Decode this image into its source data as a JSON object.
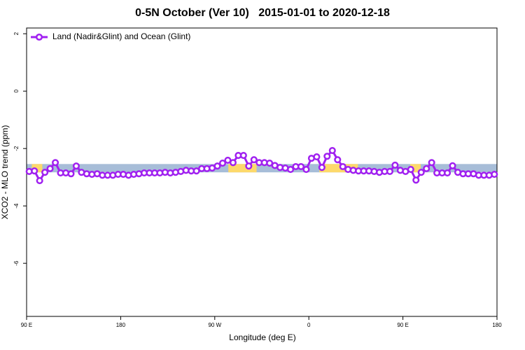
{
  "chart_data": {
    "type": "line",
    "title": "0-5N October (Ver 10)   2015-01-01 to 2020-12-18",
    "xlabel": "Longitude (deg E)",
    "ylabel": "XCO2 - MLO trend (ppm)",
    "xlim": [
      90,
      540
    ],
    "ylim": [
      -7.85,
      2.2
    ],
    "xticks": [
      {
        "value": 90,
        "label": "90 E"
      },
      180,
      {
        "value": 270,
        "label": "90 W"
      },
      {
        "value": 360,
        "label": "0"
      },
      {
        "value": 450,
        "label": "90 E"
      },
      {
        "value": 540,
        "label": "180"
      }
    ],
    "yticks": [
      2,
      0,
      -2,
      -4,
      -6
    ],
    "band": {
      "ymin": -2.83,
      "ymax": -2.54,
      "color": "#a7bdd8"
    },
    "highlight_ranges": [
      [
        95,
        105
      ],
      [
        283,
        310
      ],
      [
        370,
        407
      ],
      [
        457,
        467
      ]
    ],
    "highlight_color": "#fdd96b",
    "legend": "upper left",
    "x": [
      92.5,
      97.5,
      102.5,
      107.5,
      112.5,
      117.5,
      122.5,
      127.5,
      132.5,
      137.5,
      142.5,
      147.5,
      152.5,
      157.5,
      162.5,
      167.5,
      172.5,
      177.5,
      182.5,
      187.5,
      192.5,
      197.5,
      202.5,
      207.5,
      212.5,
      217.5,
      222.5,
      227.5,
      232.5,
      237.5,
      242.5,
      247.5,
      252.5,
      257.5,
      262.5,
      267.5,
      272.5,
      277.5,
      282.5,
      287.5,
      292.5,
      297.5,
      302.5,
      307.5,
      312.5,
      317.5,
      322.5,
      327.5,
      332.5,
      337.5,
      342.5,
      347.5,
      352.5,
      357.5,
      362.5,
      367.5,
      372.5,
      377.5,
      382.5,
      387.5,
      392.5,
      397.5,
      402.5,
      407.5,
      412.5,
      417.5,
      422.5,
      427.5,
      432.5,
      437.5,
      442.5,
      447.5,
      452.5,
      457.5,
      462.5,
      467.5,
      472.5,
      477.5,
      482.5,
      487.5,
      492.5,
      497.5,
      502.5,
      507.5,
      512.5,
      517.5,
      522.5,
      527.5,
      532.5,
      537.5
    ],
    "series": [
      {
        "name": "Land (Nadir&Glint) and Ocean (Glint)",
        "color": "#a020f0",
        "values": [
          -2.8,
          -2.78,
          -3.12,
          -2.83,
          -2.7,
          -2.49,
          -2.85,
          -2.85,
          -2.88,
          -2.61,
          -2.83,
          -2.88,
          -2.9,
          -2.88,
          -2.93,
          -2.93,
          -2.93,
          -2.9,
          -2.9,
          -2.93,
          -2.9,
          -2.88,
          -2.85,
          -2.85,
          -2.85,
          -2.85,
          -2.83,
          -2.85,
          -2.83,
          -2.8,
          -2.76,
          -2.78,
          -2.78,
          -2.7,
          -2.7,
          -2.68,
          -2.61,
          -2.51,
          -2.41,
          -2.49,
          -2.24,
          -2.24,
          -2.61,
          -2.39,
          -2.49,
          -2.49,
          -2.51,
          -2.59,
          -2.66,
          -2.68,
          -2.73,
          -2.63,
          -2.63,
          -2.73,
          -2.34,
          -2.29,
          -2.66,
          -2.27,
          -2.07,
          -2.39,
          -2.63,
          -2.73,
          -2.76,
          -2.78,
          -2.78,
          -2.78,
          -2.8,
          -2.83,
          -2.8,
          -2.8,
          -2.58,
          -2.76,
          -2.8,
          -2.73,
          -3.1,
          -2.83,
          -2.7,
          -2.49,
          -2.85,
          -2.85,
          -2.85,
          -2.6,
          -2.83,
          -2.88,
          -2.88,
          -2.88,
          -2.93,
          -2.93,
          -2.93,
          -2.9
        ]
      }
    ]
  }
}
